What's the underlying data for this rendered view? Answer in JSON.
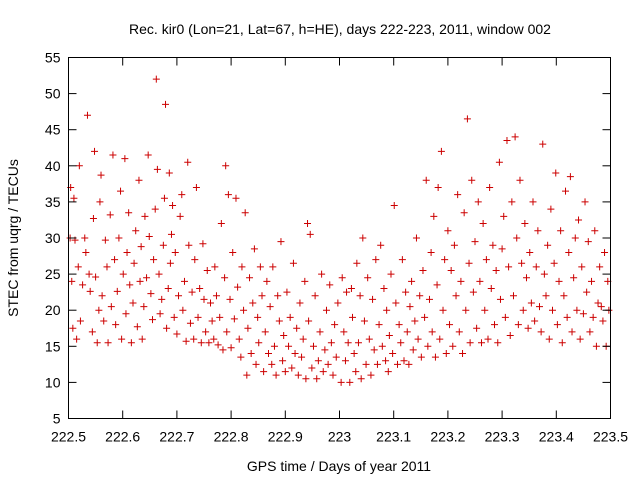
{
  "chart_data": {
    "type": "scatter",
    "title": "Rec. kir0 (Lon=21, Lat=67, h=HE), days 222-223, 2011, window 002",
    "xlabel": "GPS time / Days of year 2011",
    "ylabel": "STEC from uqrg / TECUs",
    "xlim": [
      222.5,
      223.5
    ],
    "ylim": [
      5,
      55
    ],
    "xticks": [
      222.5,
      222.6,
      222.7,
      222.8,
      222.9,
      223,
      223.1,
      223.2,
      223.3,
      223.4,
      223.5
    ],
    "xtick_labels": [
      "222.5",
      "222.6",
      "222.7",
      "222.8",
      "222.9",
      "223",
      "223.1",
      "223.2",
      "223.3",
      "223.4",
      "223.5"
    ],
    "yticks": [
      5,
      10,
      15,
      20,
      25,
      30,
      35,
      40,
      45,
      50,
      55
    ],
    "ytick_labels": [
      "5",
      "10",
      "15",
      "20",
      "25",
      "30",
      "35",
      "40",
      "45",
      "50",
      "55"
    ],
    "grid": false,
    "marker": "+",
    "color": "#cc0000",
    "points": [
      [
        222.503,
        30
      ],
      [
        222.504,
        37
      ],
      [
        222.506,
        24
      ],
      [
        222.508,
        17.5
      ],
      [
        222.51,
        35.5
      ],
      [
        222.512,
        29.7
      ],
      [
        222.515,
        16
      ],
      [
        222.518,
        26
      ],
      [
        222.52,
        40
      ],
      [
        222.522,
        18.5
      ],
      [
        222.526,
        23.5
      ],
      [
        222.53,
        30
      ],
      [
        222.532,
        28
      ],
      [
        222.535,
        47
      ],
      [
        222.538,
        25
      ],
      [
        222.54,
        22.6
      ],
      [
        222.544,
        17
      ],
      [
        222.546,
        32.7
      ],
      [
        222.548,
        42
      ],
      [
        222.55,
        24.6
      ],
      [
        222.553,
        15.5
      ],
      [
        222.556,
        20
      ],
      [
        222.558,
        35
      ],
      [
        222.56,
        38.7
      ],
      [
        222.562,
        22
      ],
      [
        222.565,
        18.5
      ],
      [
        222.568,
        29.7
      ],
      [
        222.571,
        26
      ],
      [
        222.573,
        15.5
      ],
      [
        222.577,
        33.2
      ],
      [
        222.579,
        20.5
      ],
      [
        222.582,
        41.5
      ],
      [
        222.585,
        27
      ],
      [
        222.587,
        18
      ],
      [
        222.59,
        22.6
      ],
      [
        222.593,
        30
      ],
      [
        222.596,
        36.5
      ],
      [
        222.598,
        16
      ],
      [
        222.601,
        25
      ],
      [
        222.604,
        41
      ],
      [
        222.606,
        19.5
      ],
      [
        222.608,
        28
      ],
      [
        222.611,
        33.5
      ],
      [
        222.613,
        23.5
      ],
      [
        222.616,
        15.5
      ],
      [
        222.619,
        21
      ],
      [
        222.621,
        26.5
      ],
      [
        222.624,
        31
      ],
      [
        222.627,
        17.7
      ],
      [
        222.63,
        38
      ],
      [
        222.632,
        24
      ],
      [
        222.634,
        28.8
      ],
      [
        222.636,
        16
      ],
      [
        222.639,
        20.5
      ],
      [
        222.641,
        33
      ],
      [
        222.644,
        24.5
      ],
      [
        222.647,
        41.5
      ],
      [
        222.649,
        30.2
      ],
      [
        222.652,
        22.3
      ],
      [
        222.655,
        18.7
      ],
      [
        222.657,
        27
      ],
      [
        222.66,
        34
      ],
      [
        222.662,
        52
      ],
      [
        222.664,
        39.5
      ],
      [
        222.667,
        25
      ],
      [
        222.669,
        19.5
      ],
      [
        222.672,
        21.5
      ],
      [
        222.675,
        29
      ],
      [
        222.677,
        35.5
      ],
      [
        222.679,
        48.5
      ],
      [
        222.681,
        17.5
      ],
      [
        222.684,
        23
      ],
      [
        222.686,
        39
      ],
      [
        222.688,
        26.5
      ],
      [
        222.69,
        30.5
      ],
      [
        222.692,
        34.5
      ],
      [
        222.695,
        19
      ],
      [
        222.697,
        28
      ],
      [
        222.7,
        16.7
      ],
      [
        222.703,
        22
      ],
      [
        222.706,
        33
      ],
      [
        222.709,
        36
      ],
      [
        222.711,
        20
      ],
      [
        222.714,
        24
      ],
      [
        222.717,
        15.7
      ],
      [
        222.72,
        40.5
      ],
      [
        222.722,
        29
      ],
      [
        222.725,
        18.2
      ],
      [
        222.728,
        22.5
      ],
      [
        222.731,
        16
      ],
      [
        222.733,
        27
      ],
      [
        222.736,
        37
      ],
      [
        222.739,
        19
      ],
      [
        222.742,
        23
      ],
      [
        222.745,
        15.5
      ],
      [
        222.748,
        29.2
      ],
      [
        222.75,
        21.5
      ],
      [
        222.753,
        17
      ],
      [
        222.756,
        25.5
      ],
      [
        222.759,
        15.5
      ],
      [
        222.762,
        21
      ],
      [
        222.765,
        18.5
      ],
      [
        222.768,
        16
      ],
      [
        222.77,
        26
      ],
      [
        222.773,
        22
      ],
      [
        222.776,
        15.2
      ],
      [
        222.779,
        19
      ],
      [
        222.782,
        32
      ],
      [
        222.785,
        14.5
      ],
      [
        222.788,
        24.5
      ],
      [
        222.79,
        40
      ],
      [
        222.792,
        17
      ],
      [
        222.795,
        36
      ],
      [
        222.798,
        21.5
      ],
      [
        222.8,
        14.8
      ],
      [
        222.803,
        28
      ],
      [
        222.806,
        18.8
      ],
      [
        222.809,
        35.5
      ],
      [
        222.812,
        23.2
      ],
      [
        222.815,
        16
      ],
      [
        222.818,
        13.5
      ],
      [
        222.82,
        26
      ],
      [
        222.823,
        20
      ],
      [
        222.826,
        33.5
      ],
      [
        222.829,
        11
      ],
      [
        222.831,
        17.5
      ],
      [
        222.834,
        24.5
      ],
      [
        222.837,
        14
      ],
      [
        222.84,
        21
      ],
      [
        222.843,
        28.5
      ],
      [
        222.846,
        12.5
      ],
      [
        222.849,
        19
      ],
      [
        222.851,
        15.5
      ],
      [
        222.854,
        26
      ],
      [
        222.857,
        22
      ],
      [
        222.86,
        11.5
      ],
      [
        222.863,
        17
      ],
      [
        222.866,
        24
      ],
      [
        222.869,
        14
      ],
      [
        222.872,
        20.5
      ],
      [
        222.875,
        12.5
      ],
      [
        222.877,
        26
      ],
      [
        222.88,
        15
      ],
      [
        222.883,
        11
      ],
      [
        222.886,
        22
      ],
      [
        222.889,
        18.5
      ],
      [
        222.892,
        29.5
      ],
      [
        222.895,
        13
      ],
      [
        222.897,
        16.5
      ],
      [
        222.9,
        11.5
      ],
      [
        222.903,
        22.5
      ],
      [
        222.906,
        15
      ],
      [
        222.909,
        19
      ],
      [
        222.912,
        12
      ],
      [
        222.915,
        26.5
      ],
      [
        222.918,
        14
      ],
      [
        222.921,
        17.5
      ],
      [
        222.924,
        11
      ],
      [
        222.927,
        21
      ],
      [
        222.93,
        13.5
      ],
      [
        222.933,
        16
      ],
      [
        222.936,
        24
      ],
      [
        222.938,
        10.5
      ],
      [
        222.941,
        32
      ],
      [
        222.943,
        18.5
      ],
      [
        222.946,
        30.5
      ],
      [
        222.949,
        12
      ],
      [
        222.952,
        15
      ],
      [
        222.955,
        22
      ],
      [
        222.958,
        10.5
      ],
      [
        222.961,
        13
      ],
      [
        222.964,
        17
      ],
      [
        222.967,
        25
      ],
      [
        222.97,
        11.5
      ],
      [
        222.973,
        14.5
      ],
      [
        222.976,
        20
      ],
      [
        222.979,
        12.5
      ],
      [
        222.982,
        23.5
      ],
      [
        222.985,
        15.5
      ],
      [
        222.988,
        11
      ],
      [
        222.991,
        18
      ],
      [
        222.994,
        13.5
      ],
      [
        222.997,
        21
      ],
      [
        223.003,
        10
      ],
      [
        223.005,
        24.5
      ],
      [
        223.008,
        17
      ],
      [
        223.011,
        13
      ],
      [
        223.013,
        22.5
      ],
      [
        223.016,
        15.5
      ],
      [
        223.019,
        10
      ],
      [
        223.022,
        23
      ],
      [
        223.024,
        19
      ],
      [
        223.027,
        14
      ],
      [
        223.03,
        11.5
      ],
      [
        223.032,
        26.5
      ],
      [
        223.035,
        15.5
      ],
      [
        223.038,
        22
      ],
      [
        223.04,
        10.5
      ],
      [
        223.043,
        30
      ],
      [
        223.046,
        18.5
      ],
      [
        223.049,
        12.5
      ],
      [
        223.052,
        24.5
      ],
      [
        223.055,
        16
      ],
      [
        223.058,
        11
      ],
      [
        223.061,
        21.5
      ],
      [
        223.064,
        14.5
      ],
      [
        223.067,
        27
      ],
      [
        223.07,
        12.5
      ],
      [
        223.073,
        18
      ],
      [
        223.076,
        29
      ],
      [
        223.079,
        15
      ],
      [
        223.082,
        23
      ],
      [
        223.085,
        13
      ],
      [
        223.087,
        20
      ],
      [
        223.09,
        11.5
      ],
      [
        223.092,
        16.5
      ],
      [
        223.095,
        25
      ],
      [
        223.098,
        14
      ],
      [
        223.101,
        34.5
      ],
      [
        223.104,
        21
      ],
      [
        223.107,
        12.5
      ],
      [
        223.11,
        18
      ],
      [
        223.113,
        15.5
      ],
      [
        223.116,
        27
      ],
      [
        223.119,
        13
      ],
      [
        223.122,
        22.5
      ],
      [
        223.125,
        17
      ],
      [
        223.128,
        12.5
      ],
      [
        223.13,
        20.5
      ],
      [
        223.133,
        24
      ],
      [
        223.136,
        14.5
      ],
      [
        223.139,
        18.5
      ],
      [
        223.142,
        30
      ],
      [
        223.145,
        16
      ],
      [
        223.148,
        22
      ],
      [
        223.151,
        13.5
      ],
      [
        223.154,
        25.5
      ],
      [
        223.157,
        19
      ],
      [
        223.16,
        38
      ],
      [
        223.163,
        15
      ],
      [
        223.166,
        21.5
      ],
      [
        223.169,
        28
      ],
      [
        223.171,
        17
      ],
      [
        223.174,
        33
      ],
      [
        223.177,
        13.5
      ],
      [
        223.18,
        23.5
      ],
      [
        223.182,
        37
      ],
      [
        223.185,
        16
      ],
      [
        223.188,
        42
      ],
      [
        223.191,
        20
      ],
      [
        223.194,
        27
      ],
      [
        223.197,
        14
      ],
      [
        223.2,
        31
      ],
      [
        223.203,
        18
      ],
      [
        223.206,
        25.5
      ],
      [
        223.209,
        15
      ],
      [
        223.212,
        29
      ],
      [
        223.215,
        22
      ],
      [
        223.218,
        36
      ],
      [
        223.221,
        17
      ],
      [
        223.224,
        24
      ],
      [
        223.227,
        14
      ],
      [
        223.23,
        33.5
      ],
      [
        223.233,
        20
      ],
      [
        223.236,
        46.5
      ],
      [
        223.239,
        26.5
      ],
      [
        223.241,
        15.5
      ],
      [
        223.244,
        38
      ],
      [
        223.247,
        22.5
      ],
      [
        223.25,
        29.5
      ],
      [
        223.253,
        17.5
      ],
      [
        223.256,
        35
      ],
      [
        223.259,
        24
      ],
      [
        223.262,
        15.5
      ],
      [
        223.265,
        32
      ],
      [
        223.268,
        20
      ],
      [
        223.271,
        27
      ],
      [
        223.274,
        16
      ],
      [
        223.277,
        37
      ],
      [
        223.28,
        23
      ],
      [
        223.283,
        29
      ],
      [
        223.286,
        18
      ],
      [
        223.289,
        25.5
      ],
      [
        223.292,
        15.5
      ],
      [
        223.295,
        40.5
      ],
      [
        223.297,
        21.5
      ],
      [
        223.3,
        28.5
      ],
      [
        223.303,
        33
      ],
      [
        223.306,
        19
      ],
      [
        223.309,
        43.5
      ],
      [
        223.312,
        26
      ],
      [
        223.315,
        16.5
      ],
      [
        223.318,
        35
      ],
      [
        223.321,
        22
      ],
      [
        223.324,
        44
      ],
      [
        223.327,
        30
      ],
      [
        223.33,
        18
      ],
      [
        223.333,
        38
      ],
      [
        223.336,
        26.5
      ],
      [
        223.339,
        20
      ],
      [
        223.342,
        32
      ],
      [
        223.345,
        24.5
      ],
      [
        223.348,
        17.5
      ],
      [
        223.351,
        28
      ],
      [
        223.354,
        21
      ],
      [
        223.357,
        35
      ],
      [
        223.36,
        18.5
      ],
      [
        223.363,
        26
      ],
      [
        223.366,
        31
      ],
      [
        223.369,
        20.5
      ],
      [
        223.372,
        17
      ],
      [
        223.375,
        43
      ],
      [
        223.378,
        25
      ],
      [
        223.381,
        22
      ],
      [
        223.384,
        29
      ],
      [
        223.387,
        16
      ],
      [
        223.39,
        34
      ],
      [
        223.393,
        20
      ],
      [
        223.396,
        26.5
      ],
      [
        223.399,
        39
      ],
      [
        223.402,
        18
      ],
      [
        223.405,
        24
      ],
      [
        223.408,
        31
      ],
      [
        223.411,
        15.5
      ],
      [
        223.414,
        22
      ],
      [
        223.417,
        36.5
      ],
      [
        223.42,
        19
      ],
      [
        223.423,
        28
      ],
      [
        223.426,
        38.5
      ],
      [
        223.429,
        17
      ],
      [
        223.432,
        24.5
      ],
      [
        223.435,
        30
      ],
      [
        223.438,
        20
      ],
      [
        223.441,
        32.5
      ],
      [
        223.444,
        16
      ],
      [
        223.447,
        26
      ],
      [
        223.45,
        19.5
      ],
      [
        223.453,
        35
      ],
      [
        223.456,
        22.5
      ],
      [
        223.459,
        29.5
      ],
      [
        223.462,
        17
      ],
      [
        223.465,
        24
      ],
      [
        223.468,
        19
      ],
      [
        223.471,
        31
      ],
      [
        223.474,
        15
      ],
      [
        223.477,
        21
      ],
      [
        223.48,
        26
      ],
      [
        223.483,
        20.5
      ],
      [
        223.486,
        18.5
      ],
      [
        223.489,
        28
      ],
      [
        223.492,
        15
      ],
      [
        223.495,
        24
      ],
      [
        223.497,
        20
      ]
    ]
  }
}
